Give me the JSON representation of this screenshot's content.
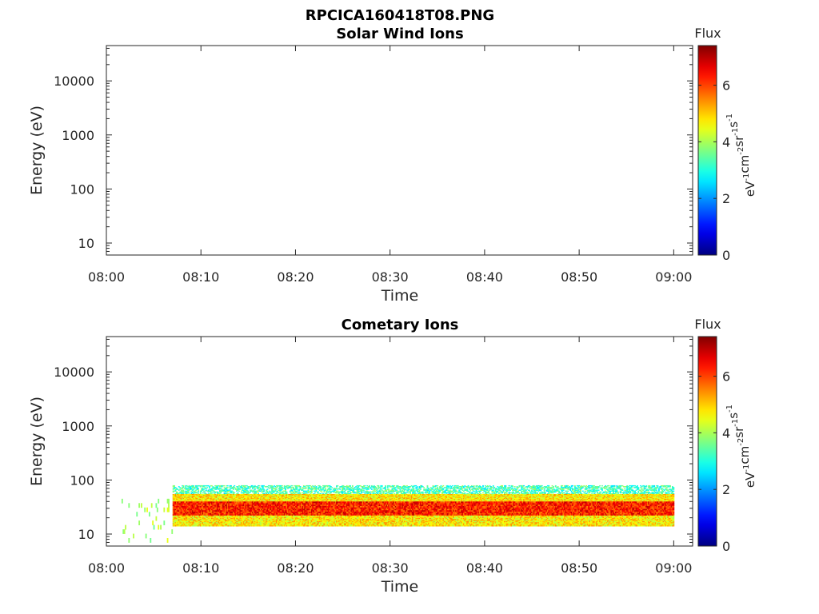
{
  "figure": {
    "title": "RPCICA160418T08.PNG"
  },
  "colorbar": {
    "title": "Flux",
    "unit_parts": [
      {
        "base": "eV",
        "sup": "-1"
      },
      {
        "base": "cm",
        "sup": "-2"
      },
      {
        "base": "sr",
        "sup": "-1"
      },
      {
        "base": "s",
        "sup": "-1"
      }
    ],
    "ticks": [
      "0",
      "2",
      "4",
      "6"
    ],
    "range": [
      0,
      7.4
    ],
    "colormap": "jet",
    "colors": [
      "#00008f",
      "#0000ff",
      "#00ffff",
      "#ffff00",
      "#ff0000",
      "#800000"
    ]
  },
  "chart_data": [
    {
      "type": "heatmap",
      "title": "Solar Wind Ions",
      "xlabel": "Time",
      "ylabel": "Energy (eV)",
      "x_ticks": [
        "08:00",
        "08:10",
        "08:20",
        "08:30",
        "08:40",
        "08:50",
        "09:00"
      ],
      "xlim": [
        "08:00",
        "09:02"
      ],
      "y_scale": "log",
      "y_ticks": [
        "10",
        "100",
        "1000",
        "10000"
      ],
      "ylim": [
        6,
        45000
      ],
      "colorbar_label": "Flux",
      "data": []
    },
    {
      "type": "heatmap",
      "title": "Cometary Ions",
      "xlabel": "Time",
      "ylabel": "Energy (eV)",
      "x_ticks": [
        "08:00",
        "08:10",
        "08:20",
        "08:30",
        "08:40",
        "08:50",
        "09:00"
      ],
      "xlim": [
        "08:00",
        "09:02"
      ],
      "y_scale": "log",
      "y_ticks": [
        "10",
        "100",
        "1000",
        "10000"
      ],
      "ylim": [
        6,
        45000
      ],
      "colorbar_label": "Flux",
      "series": [
        {
          "time_range": [
            "08:01",
            "08:07"
          ],
          "energy_range_eV": [
            7,
            45
          ],
          "flux_level": [
            3.5,
            4.5
          ],
          "note_visible": "sparse"
        },
        {
          "time_range": [
            "08:07",
            "09:00"
          ],
          "energy_range_eV": [
            55,
            80
          ],
          "flux_level": [
            2.5,
            4.0
          ]
        },
        {
          "time_range": [
            "08:07",
            "09:00"
          ],
          "energy_range_eV": [
            40,
            55
          ],
          "flux_level": [
            4.0,
            5.5
          ]
        },
        {
          "time_range": [
            "08:07",
            "09:00"
          ],
          "energy_range_eV": [
            22,
            40
          ],
          "flux_level": [
            5.5,
            7.0
          ]
        },
        {
          "time_range": [
            "08:07",
            "09:00"
          ],
          "energy_range_eV": [
            14,
            22
          ],
          "flux_level": [
            4.0,
            5.5
          ]
        }
      ]
    }
  ]
}
